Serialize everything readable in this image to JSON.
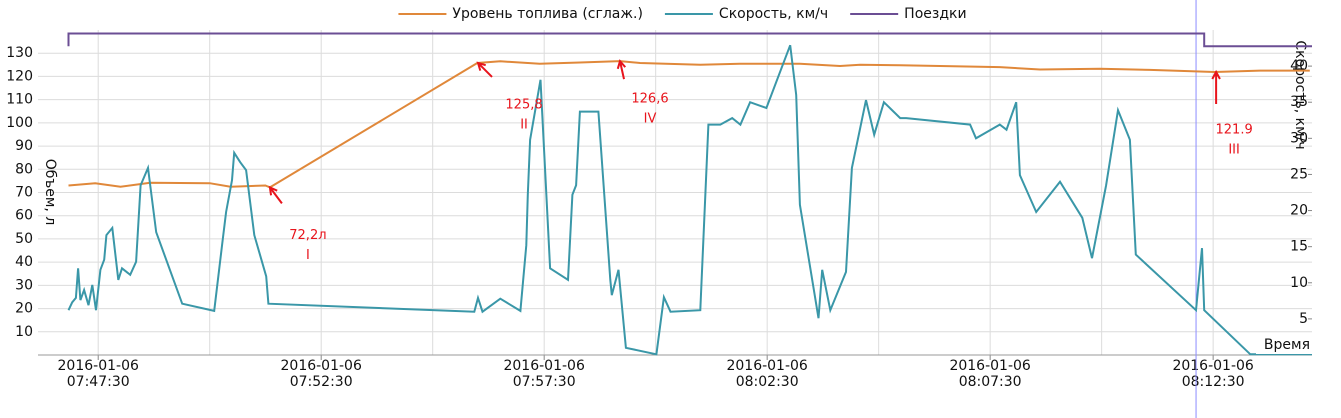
{
  "chart_data": {
    "type": "line",
    "xlim": [
      "2016-01-06 07:46:09",
      "2016-01-06 08:14:43"
    ],
    "xticks": [
      {
        "value": "2016-01-06 07:47:30",
        "label": [
          "2016-01-06",
          "07:47:30"
        ]
      },
      {
        "value": "2016-01-06 07:52:30",
        "label": [
          "2016-01-06",
          "07:52:30"
        ]
      },
      {
        "value": "2016-01-06 07:57:30",
        "label": [
          "2016-01-06",
          "07:57:30"
        ]
      },
      {
        "value": "2016-01-06 08:02:30",
        "label": [
          "2016-01-06",
          "08:02:30"
        ]
      },
      {
        "value": "2016-01-06 08:07:30",
        "label": [
          "2016-01-06",
          "08:07:30"
        ]
      },
      {
        "value": "2016-01-06 08:12:30",
        "label": [
          "2016-01-06",
          "08:12:30"
        ]
      }
    ],
    "xminor_ticks": [
      "2016-01-06 07:50:00",
      "2016-01-06 07:55:00",
      "2016-01-06 08:00:00",
      "2016-01-06 08:05:00",
      "2016-01-06 08:10:00"
    ],
    "xlabel": "Время",
    "ylabel": "Объем, л",
    "y2label": "Скорость, км/ч",
    "ylim": [
      0,
      140
    ],
    "yticks": [
      10,
      20,
      30,
      40,
      50,
      60,
      70,
      80,
      90,
      100,
      110,
      120,
      130
    ],
    "y2lim": [
      0,
      45
    ],
    "y2ticks": [
      5,
      10,
      15,
      20,
      25,
      30,
      35,
      40
    ],
    "grid": true,
    "legend": "top",
    "cursor_x": "2016-01-06 08:12:07",
    "cursor_color": "#8c8cff",
    "series": [
      {
        "name": "Уровень топлива (сглаж.)",
        "color": "#e0883a",
        "axis": "y",
        "x": [
          "2016-01-06 07:46:50",
          "2016-01-06 07:47:26",
          "2016-01-06 07:48:00",
          "2016-01-06 07:48:40",
          "2016-01-06 07:50:00",
          "2016-01-06 07:50:28",
          "2016-01-06 07:51:15",
          "2016-01-06 07:51:21",
          "2016-01-06 07:56:00",
          "2016-01-06 07:56:31",
          "2016-01-06 07:57:24",
          "2016-01-06 07:58:18",
          "2016-01-06 07:59:12",
          "2016-01-06 07:59:39",
          "2016-01-06 08:01:00",
          "2016-01-06 08:01:53",
          "2016-01-06 08:03:14",
          "2016-01-06 08:04:08",
          "2016-01-06 08:04:35",
          "2016-01-06 08:05:29",
          "2016-01-06 08:07:43",
          "2016-01-06 08:08:37",
          "2016-01-06 08:09:58",
          "2016-01-06 08:11:05",
          "2016-01-06 08:12:32",
          "2016-01-06 08:13:33",
          "2016-01-06 08:14:40"
        ],
        "values": [
          73,
          74,
          72.5,
          74.2,
          74,
          72.5,
          73,
          72.2,
          125.8,
          126.5,
          125.5,
          126,
          126.6,
          125.8,
          125,
          125.5,
          125.5,
          124.5,
          125,
          124.8,
          124,
          123,
          123.3,
          122.8,
          121.9,
          122.5,
          122.5
        ]
      },
      {
        "name": "Скорость, км/ч",
        "color": "#3a97a8",
        "axis": "y2",
        "x": [
          "2016-01-06 07:46:50",
          "2016-01-06 07:46:55",
          "2016-01-06 07:47:00",
          "2016-01-06 07:47:03",
          "2016-01-06 07:47:06",
          "2016-01-06 07:47:11",
          "2016-01-06 07:47:17",
          "2016-01-06 07:47:22",
          "2016-01-06 07:47:27",
          "2016-01-06 07:47:33",
          "2016-01-06 07:47:38",
          "2016-01-06 07:47:41",
          "2016-01-06 07:47:49",
          "2016-01-06 07:47:57",
          "2016-01-06 07:48:02",
          "2016-01-06 07:48:13",
          "2016-01-06 07:48:21",
          "2016-01-06 07:48:27",
          "2016-01-06 07:48:37",
          "2016-01-06 07:48:48",
          "2016-01-06 07:49:23",
          "2016-01-06 07:50:06",
          "2016-01-06 07:50:17",
          "2016-01-06 07:50:22",
          "2016-01-06 07:50:30",
          "2016-01-06 07:50:33",
          "2016-01-06 07:50:41",
          "2016-01-06 07:50:49",
          "2016-01-06 07:51:00",
          "2016-01-06 07:51:16",
          "2016-01-06 07:51:19",
          "2016-01-06 07:55:56",
          "2016-01-06 07:56:01",
          "2016-01-06 07:56:07",
          "2016-01-06 07:56:31",
          "2016-01-06 07:56:58",
          "2016-01-06 07:57:06",
          "2016-01-06 07:57:08",
          "2016-01-06 07:57:11",
          "2016-01-06 07:57:25",
          "2016-01-06 07:57:38",
          "2016-01-06 07:58:02",
          "2016-01-06 07:58:08",
          "2016-01-06 07:58:13",
          "2016-01-06 07:58:18",
          "2016-01-06 07:58:43",
          "2016-01-06 07:58:59",
          "2016-01-06 07:59:01",
          "2016-01-06 07:59:10",
          "2016-01-06 07:59:20",
          "2016-01-06 08:00:01",
          "2016-01-06 08:00:11",
          "2016-01-06 08:00:20",
          "2016-01-06 08:01:00",
          "2016-01-06 08:01:11",
          "2016-01-06 08:01:27",
          "2016-01-06 08:01:43",
          "2016-01-06 08:01:54",
          "2016-01-06 08:02:07",
          "2016-01-06 08:02:29",
          "2016-01-06 08:03:01",
          "2016-01-06 08:03:09",
          "2016-01-06 08:03:14",
          "2016-01-06 08:03:39",
          "2016-01-06 08:03:44",
          "2016-01-06 08:03:55",
          "2016-01-06 08:04:16",
          "2016-01-06 08:04:24",
          "2016-01-06 08:04:43",
          "2016-01-06 08:04:54",
          "2016-01-06 08:05:07",
          "2016-01-06 08:05:29",
          "2016-01-06 08:05:37",
          "2016-01-06 08:07:03",
          "2016-01-06 08:07:11",
          "2016-01-06 08:07:43",
          "2016-01-06 08:07:52",
          "2016-01-06 08:08:05",
          "2016-01-06 08:08:10",
          "2016-01-06 08:08:32",
          "2016-01-06 08:09:04",
          "2016-01-06 08:09:34",
          "2016-01-06 08:09:47",
          "2016-01-06 08:10:06",
          "2016-01-06 08:10:22",
          "2016-01-06 08:10:38",
          "2016-01-06 08:10:46",
          "2016-01-06 08:12:07",
          "2016-01-06 08:12:15",
          "2016-01-06 08:12:18",
          "2016-01-06 08:13:20",
          "2016-01-06 08:14:43"
        ],
        "values": [
          6.2,
          7.3,
          7.9,
          12,
          7.6,
          9,
          6.9,
          9.7,
          6.2,
          11.8,
          13.2,
          16.6,
          17.6,
          10.4,
          12,
          11.1,
          12.9,
          23.5,
          25.9,
          17,
          7.1,
          6.1,
          15.5,
          19.8,
          24.2,
          28,
          26.7,
          25.6,
          16.6,
          10.9,
          7.1,
          6,
          7.9,
          6,
          7.8,
          6.1,
          15.2,
          22.2,
          29.8,
          38.1,
          12,
          10.4,
          22.2,
          23.5,
          33.7,
          33.7,
          10.4,
          8.3,
          11.8,
          1,
          0.1,
          8,
          6,
          6.2,
          31.9,
          31.9,
          32.8,
          31.9,
          35,
          34.2,
          42.9,
          36,
          20.8,
          5.1,
          11.8,
          6.2,
          11.5,
          25.9,
          35.3,
          30.5,
          35,
          32.8,
          32.8,
          31.9,
          30,
          31.9,
          31.2,
          35,
          24.9,
          19.8,
          24,
          19,
          13.4,
          23.5,
          33.9,
          29.8,
          13.9,
          6.2,
          14.8,
          6.2,
          0.1,
          0.1
        ]
      },
      {
        "name": "Поездки",
        "color": "#6b4e94",
        "axis": "y",
        "x": [
          "2016-01-06 07:46:50",
          "2016-01-06 07:46:50",
          "2016-01-06 08:12:18",
          "2016-01-06 08:12:18",
          "2016-01-06 08:14:43"
        ],
        "values": [
          133,
          138.5,
          138.5,
          133,
          133
        ]
      }
    ],
    "annotations": [
      {
        "lines": [
          "72,2л",
          "I"
        ],
        "x": "2016-01-06 07:51:21",
        "y": 72.2
      },
      {
        "lines": [
          "125,8",
          "II"
        ],
        "x": "2016-01-06 07:56:01",
        "y": 125.8
      },
      {
        "lines": [
          "126,6",
          "IV"
        ],
        "x": "2016-01-06 07:59:12",
        "y": 126.6
      },
      {
        "lines": [
          "121.9",
          "III"
        ],
        "x": "2016-01-06 08:12:34",
        "y": 121.9
      }
    ],
    "annotation_color": "#e8141c"
  }
}
